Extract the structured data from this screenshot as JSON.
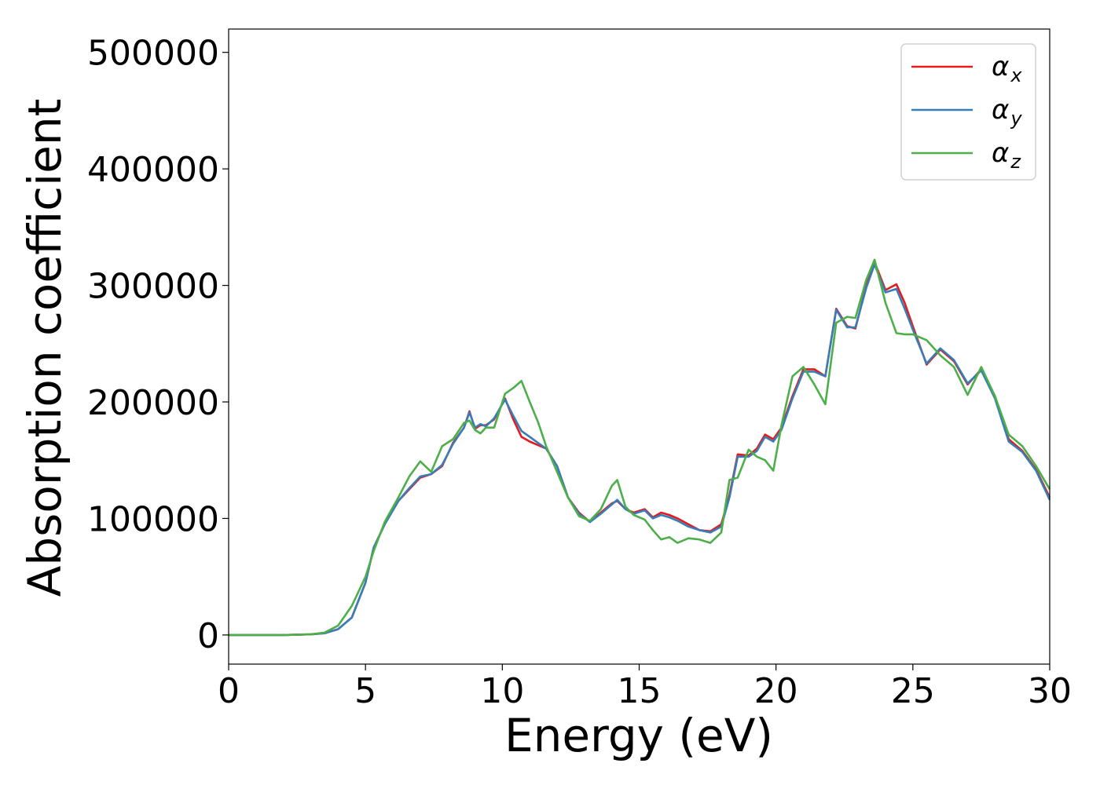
{
  "chart_data": {
    "type": "line",
    "xlabel": "Energy (eV)",
    "ylabel": "Absorption coefficient",
    "xlim": [
      0,
      30
    ],
    "ylim": [
      -25000,
      520000
    ],
    "xticks": [
      0,
      5,
      10,
      15,
      20,
      25,
      30
    ],
    "yticks": [
      0,
      100000,
      200000,
      300000,
      400000,
      500000
    ],
    "grid": false,
    "legend_position": "top-right",
    "series": [
      {
        "name": "α_x",
        "symbol": "α",
        "subscript": "x",
        "color": "#e41a1c",
        "x": [
          0,
          1,
          2,
          3,
          3.5,
          4,
          4.5,
          5,
          5.3,
          5.7,
          6.2,
          6.6,
          7,
          7.4,
          7.8,
          8.2,
          8.6,
          8.8,
          9.0,
          9.2,
          9.4,
          9.7,
          10.1,
          10.4,
          10.7,
          11,
          11.3,
          11.6,
          12,
          12.4,
          12.8,
          13.2,
          13.6,
          14.0,
          14.2,
          14.5,
          14.8,
          15.2,
          15.5,
          15.8,
          16.1,
          16.4,
          16.8,
          17.2,
          17.6,
          18.0,
          18.3,
          18.6,
          19.0,
          19.3,
          19.6,
          19.9,
          20.2,
          20.6,
          21,
          21.4,
          21.8,
          22.2,
          22.6,
          22.9,
          23.3,
          23.6,
          24.0,
          24.4,
          24.7,
          25.0,
          25.5,
          26,
          26.5,
          27,
          27.5,
          28,
          28.5,
          29,
          29.5,
          30
        ],
        "y": [
          0,
          0,
          0,
          500,
          1500,
          5000,
          15000,
          45000,
          75000,
          95000,
          115000,
          125000,
          135000,
          138000,
          145000,
          165000,
          178000,
          192000,
          177000,
          180000,
          180000,
          185000,
          203000,
          185000,
          170000,
          166000,
          163000,
          160000,
          145000,
          118000,
          105000,
          97000,
          105000,
          113000,
          115000,
          108000,
          105000,
          108000,
          101000,
          105000,
          103000,
          100000,
          95000,
          90000,
          89000,
          95000,
          120000,
          155000,
          154000,
          160000,
          172000,
          168000,
          178000,
          205000,
          228000,
          228000,
          222000,
          280000,
          265000,
          263000,
          300000,
          320000,
          296000,
          301000,
          285000,
          265000,
          232000,
          245000,
          235000,
          215000,
          228000,
          205000,
          168000,
          158000,
          142000,
          118000
        ]
      },
      {
        "name": "α_y",
        "symbol": "α",
        "subscript": "y",
        "color": "#377eb8",
        "x": [
          0,
          1,
          2,
          3,
          3.5,
          4,
          4.5,
          5,
          5.3,
          5.7,
          6.2,
          6.6,
          7,
          7.4,
          7.8,
          8.2,
          8.6,
          8.8,
          9.0,
          9.2,
          9.4,
          9.7,
          10.1,
          10.4,
          10.7,
          11,
          11.3,
          11.6,
          12,
          12.4,
          12.8,
          13.2,
          13.6,
          14.0,
          14.2,
          14.5,
          14.8,
          15.2,
          15.5,
          15.8,
          16.1,
          16.4,
          16.8,
          17.2,
          17.6,
          18.0,
          18.3,
          18.6,
          19.0,
          19.3,
          19.6,
          19.9,
          20.2,
          20.6,
          21,
          21.4,
          21.8,
          22.2,
          22.6,
          22.9,
          23.3,
          23.6,
          24.0,
          24.4,
          24.7,
          25.0,
          25.5,
          26,
          26.5,
          27,
          27.5,
          28,
          28.5,
          29,
          29.5,
          30
        ],
        "y": [
          0,
          0,
          0,
          500,
          1500,
          5000,
          15000,
          45000,
          75000,
          95000,
          115000,
          126000,
          136000,
          138000,
          146000,
          164000,
          178000,
          191000,
          178000,
          181000,
          179000,
          186000,
          202000,
          188000,
          175000,
          170000,
          165000,
          160000,
          145000,
          118000,
          104000,
          97000,
          104000,
          112000,
          116000,
          108000,
          104000,
          107000,
          100000,
          103000,
          101000,
          98000,
          93000,
          90000,
          88000,
          93000,
          118000,
          153000,
          153000,
          158000,
          170000,
          166000,
          176000,
          203000,
          226000,
          226000,
          222000,
          279000,
          264000,
          264000,
          298000,
          318000,
          294000,
          297000,
          280000,
          262000,
          233000,
          246000,
          236000,
          216000,
          227000,
          203000,
          166000,
          157000,
          141000,
          116000
        ]
      },
      {
        "name": "α_z",
        "symbol": "α",
        "subscript": "z",
        "color": "#4daf4a",
        "x": [
          0,
          1,
          2,
          3,
          3.5,
          4,
          4.5,
          5,
          5.3,
          5.7,
          6.2,
          6.6,
          7,
          7.4,
          7.8,
          8.2,
          8.6,
          8.8,
          9.0,
          9.2,
          9.4,
          9.7,
          10.1,
          10.4,
          10.7,
          11,
          11.3,
          11.6,
          12,
          12.4,
          12.8,
          13.2,
          13.6,
          14.0,
          14.2,
          14.5,
          14.8,
          15.2,
          15.5,
          15.8,
          16.1,
          16.4,
          16.8,
          17.2,
          17.6,
          18.0,
          18.3,
          18.6,
          19.0,
          19.3,
          19.6,
          19.9,
          20.2,
          20.6,
          21,
          21.4,
          21.8,
          22.2,
          22.6,
          22.9,
          23.3,
          23.6,
          24.0,
          24.4,
          24.7,
          25.0,
          25.5,
          26,
          26.5,
          27,
          27.5,
          28,
          28.5,
          29,
          29.5,
          30
        ],
        "y": [
          0,
          0,
          0,
          500,
          2000,
          8000,
          25000,
          50000,
          72000,
          97000,
          118000,
          136000,
          149000,
          140000,
          162000,
          168000,
          182000,
          184000,
          176000,
          173000,
          178000,
          178000,
          207000,
          212000,
          218000,
          200000,
          183000,
          162000,
          140000,
          118000,
          102000,
          98000,
          108000,
          128000,
          133000,
          110000,
          103000,
          99000,
          90000,
          82000,
          84000,
          79000,
          83000,
          82000,
          79000,
          88000,
          133000,
          135000,
          159000,
          153000,
          150000,
          141000,
          180000,
          222000,
          230000,
          215000,
          198000,
          268000,
          273000,
          272000,
          305000,
          322000,
          285000,
          259000,
          258000,
          258000,
          253000,
          240000,
          230000,
          206000,
          230000,
          205000,
          172000,
          162000,
          145000,
          125000
        ]
      }
    ]
  }
}
